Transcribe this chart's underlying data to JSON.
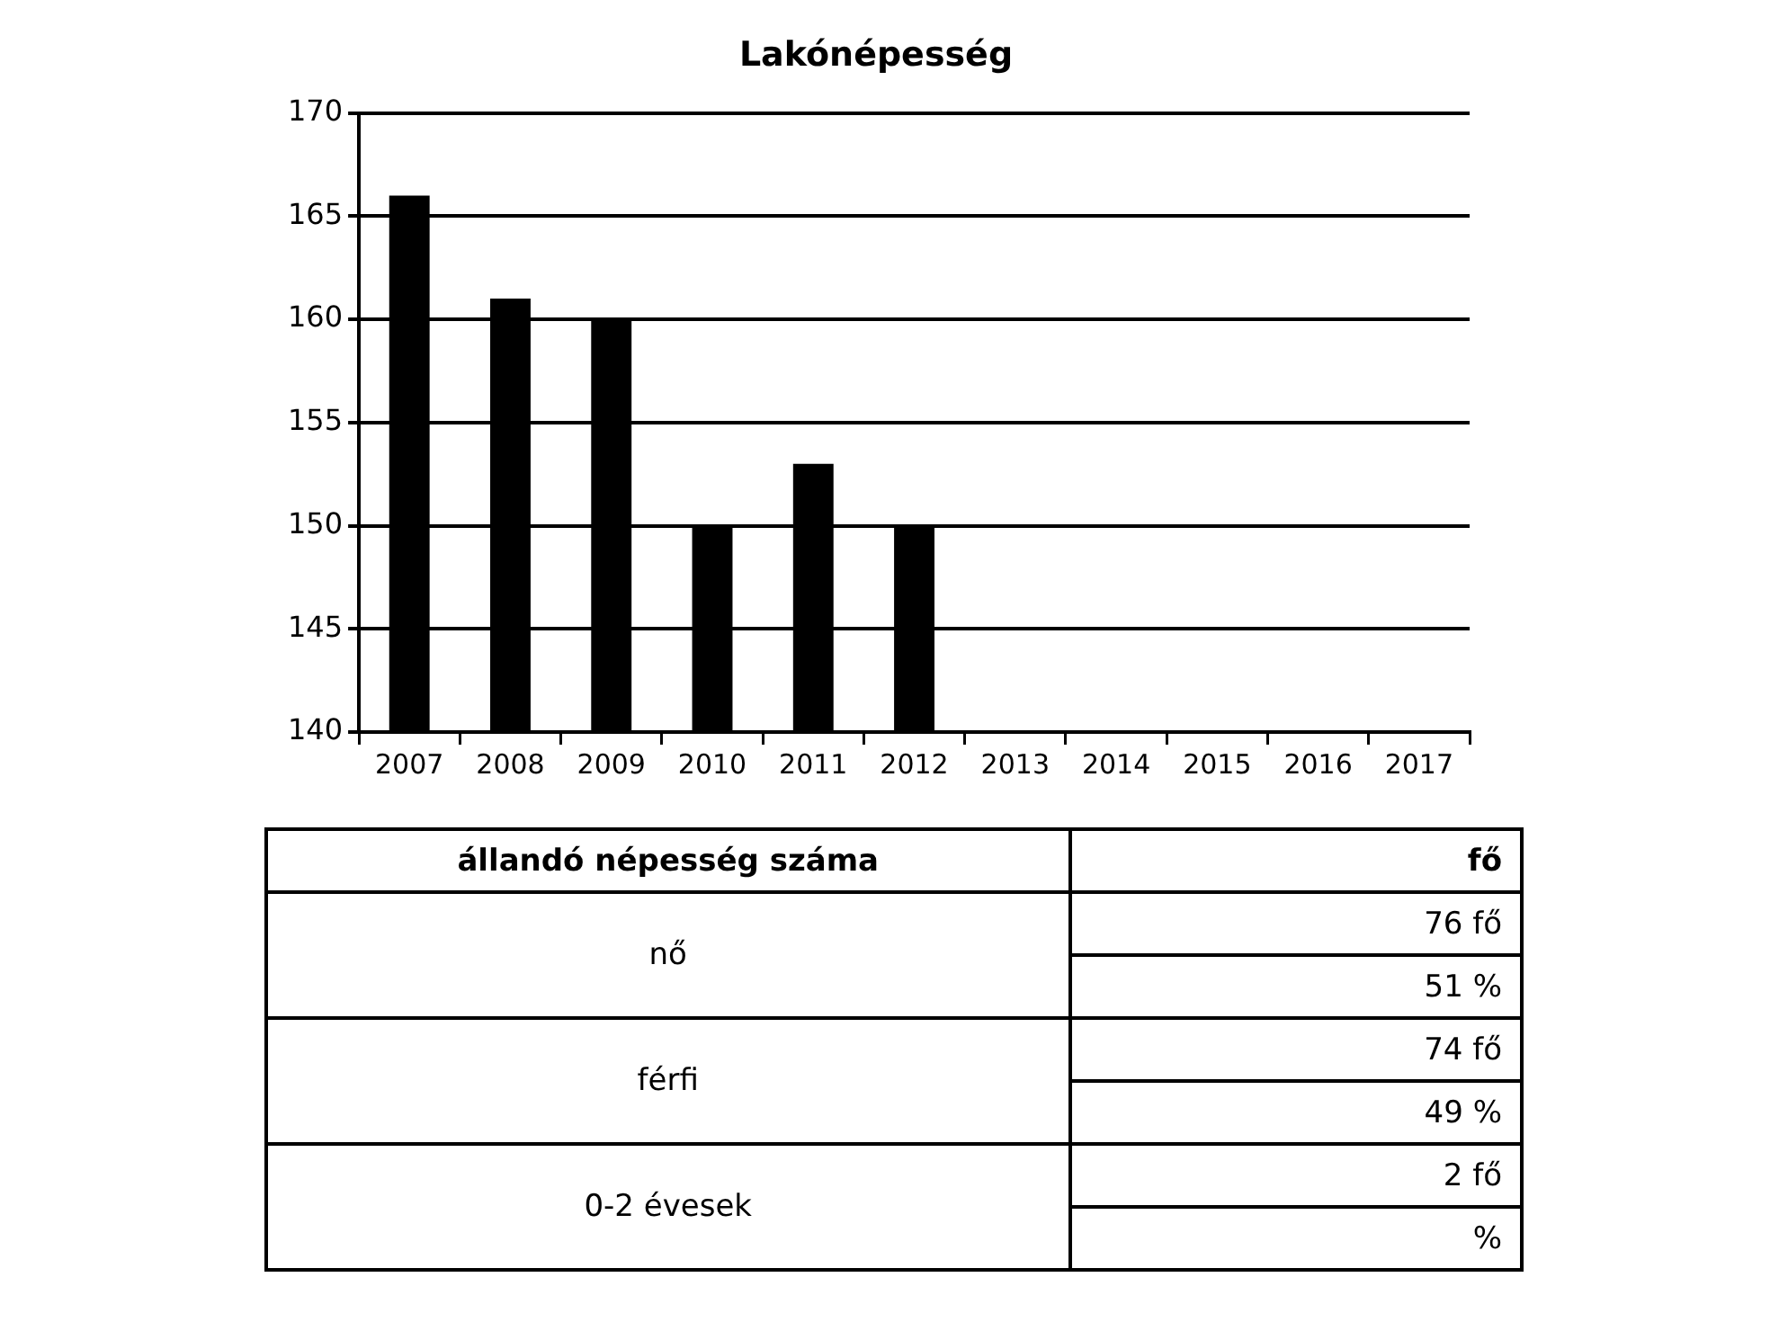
{
  "chart_data": [
    {
      "type": "bar",
      "title": "Lakónépesség",
      "categories": [
        "2007",
        "2008",
        "2009",
        "2010",
        "2011",
        "2012",
        "2013",
        "2014",
        "2015",
        "2016",
        "2017"
      ],
      "values": [
        166,
        161,
        160,
        150,
        153,
        150,
        null,
        null,
        null,
        null,
        null
      ],
      "color": "#000000",
      "ylim": [
        140,
        170
      ],
      "yticks": [
        140,
        145,
        150,
        155,
        160,
        165,
        170
      ],
      "grid": "y"
    },
    {
      "type": "other",
      "annotations": [
        "állandó népesség száma",
        "fő",
        "nő",
        "76 fő",
        "51 %",
        "férfi",
        "74 fő",
        "49 %",
        "0-2 évesek",
        "2 fő",
        "%"
      ]
    }
  ]
}
